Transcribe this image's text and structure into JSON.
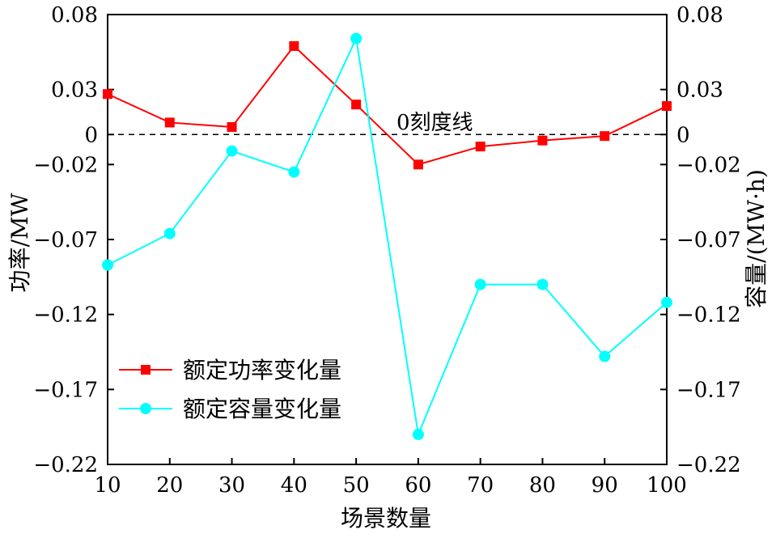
{
  "chart_data": {
    "type": "line",
    "x": [
      10,
      20,
      30,
      40,
      50,
      60,
      70,
      80,
      90,
      100
    ],
    "xlabel": "场景数量",
    "ylabel_left": "功率/MW",
    "ylabel_right": "容量/(MW·h)",
    "xlim": [
      10,
      100
    ],
    "ylim": [
      -0.22,
      0.08
    ],
    "y_ticks": [
      "0.08",
      "0.03",
      "0",
      "−0.02",
      "−0.07",
      "−0.12",
      "−0.17",
      "−0.22"
    ],
    "y_tick_values": [
      0.08,
      0.03,
      0,
      -0.02,
      -0.07,
      -0.12,
      -0.17,
      -0.22
    ],
    "x_ticks": [
      "10",
      "20",
      "30",
      "40",
      "50",
      "60",
      "70",
      "80",
      "90",
      "100"
    ],
    "grid": false,
    "legend_position": "bottom-left",
    "zero_line_label": "0刻度线",
    "series": [
      {
        "name": "额定功率变化量",
        "color": "#ff0000",
        "marker": "square",
        "axis": "left",
        "values": [
          0.027,
          0.008,
          0.005,
          0.059,
          0.02,
          -0.02,
          -0.008,
          -0.004,
          -0.001,
          0.019
        ]
      },
      {
        "name": "额定容量变化量",
        "color": "#00ffff",
        "marker": "circle",
        "axis": "right",
        "values": [
          -0.087,
          -0.066,
          -0.011,
          -0.025,
          0.064,
          -0.2,
          -0.1,
          -0.1,
          -0.148,
          -0.112
        ]
      }
    ]
  }
}
